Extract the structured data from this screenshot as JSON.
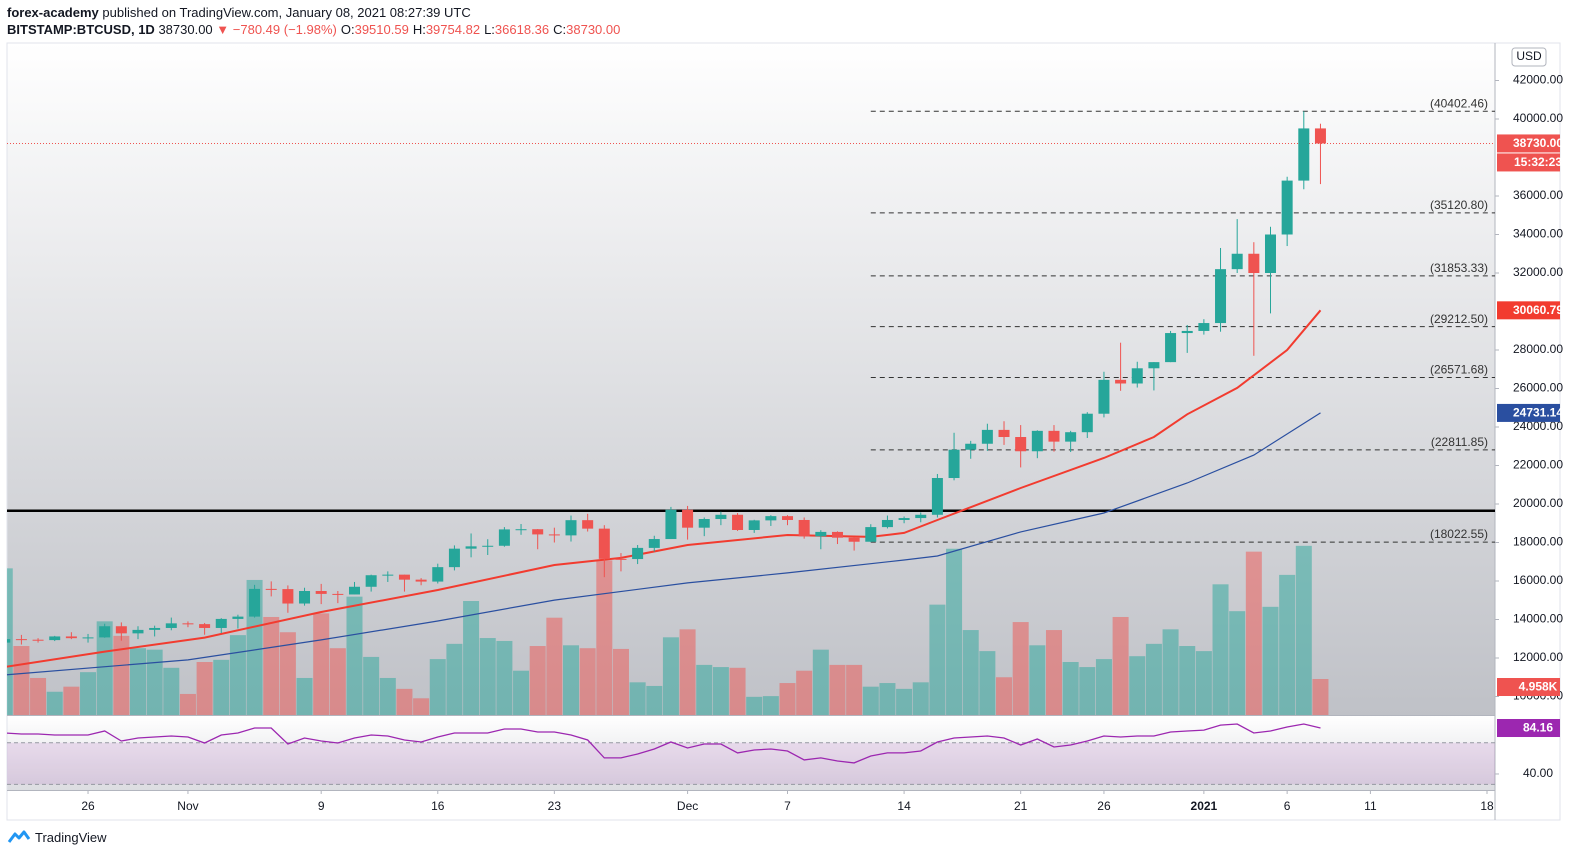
{
  "header": {
    "author": "forex-academy",
    "published": "published on TradingView.com, January 08, 2021 08:27:39 UTC",
    "symbol": "BITSTAMP:BTCUSD, 1D",
    "last": "38730.00",
    "change": "▼ −780.49 (−1.98%)",
    "ohlc": [
      {
        "label": "O:",
        "value": "39510.59"
      },
      {
        "label": "H:",
        "value": "39754.82"
      },
      {
        "label": "L:",
        "value": "36618.36"
      },
      {
        "label": "C:",
        "value": "38730.00"
      }
    ]
  },
  "footer": {
    "brand": "TradingView"
  },
  "chart_data": {
    "type": "candlestick",
    "currency": "USD",
    "up_color": "#26a69a",
    "down_color": "#ef5350",
    "categories": [
      "2020-10-21",
      "2020-10-22",
      "2020-10-23",
      "2020-10-24",
      "2020-10-25",
      "2020-10-26",
      "2020-10-27",
      "2020-10-28",
      "2020-10-29",
      "2020-10-30",
      "2020-10-31",
      "2020-11-01",
      "2020-11-02",
      "2020-11-03",
      "2020-11-04",
      "2020-11-05",
      "2020-11-06",
      "2020-11-07",
      "2020-11-08",
      "2020-11-09",
      "2020-11-10",
      "2020-11-11",
      "2020-11-12",
      "2020-11-13",
      "2020-11-14",
      "2020-11-15",
      "2020-11-16",
      "2020-11-17",
      "2020-11-18",
      "2020-11-19",
      "2020-11-20",
      "2020-11-21",
      "2020-11-22",
      "2020-11-23",
      "2020-11-24",
      "2020-11-25",
      "2020-11-26",
      "2020-11-27",
      "2020-11-28",
      "2020-11-29",
      "2020-11-30",
      "2020-12-01",
      "2020-12-02",
      "2020-12-03",
      "2020-12-04",
      "2020-12-05",
      "2020-12-06",
      "2020-12-07",
      "2020-12-08",
      "2020-12-09",
      "2020-12-10",
      "2020-12-11",
      "2020-12-12",
      "2020-12-13",
      "2020-12-14",
      "2020-12-15",
      "2020-12-16",
      "2020-12-17",
      "2020-12-18",
      "2020-12-19",
      "2020-12-20",
      "2020-12-21",
      "2020-12-22",
      "2020-12-23",
      "2020-12-24",
      "2020-12-25",
      "2020-12-26",
      "2020-12-27",
      "2020-12-28",
      "2020-12-29",
      "2020-12-30",
      "2020-12-31",
      "2021-01-01",
      "2021-01-02",
      "2021-01-03",
      "2021-01-04",
      "2021-01-05",
      "2021-01-06",
      "2021-01-07",
      "2021-01-08"
    ],
    "ohlc": [
      [
        12800,
        13200,
        12700,
        12980
      ],
      [
        12980,
        13200,
        12700,
        12950
      ],
      [
        12950,
        13030,
        12800,
        12930
      ],
      [
        12930,
        13150,
        12880,
        13120
      ],
      [
        13120,
        13340,
        12980,
        13030
      ],
      [
        13030,
        13250,
        12800,
        13070
      ],
      [
        13070,
        13780,
        13050,
        13650
      ],
      [
        13650,
        13850,
        12900,
        13280
      ],
      [
        13280,
        13650,
        12980,
        13460
      ],
      [
        13460,
        13680,
        13120,
        13560
      ],
      [
        13560,
        14100,
        13440,
        13800
      ],
      [
        13800,
        13900,
        13600,
        13760
      ],
      [
        13760,
        13820,
        13210,
        13560
      ],
      [
        13560,
        14070,
        13300,
        14030
      ],
      [
        14030,
        14250,
        13530,
        14150
      ],
      [
        14150,
        15800,
        14100,
        15590
      ],
      [
        15590,
        15980,
        15200,
        15580
      ],
      [
        15580,
        15770,
        14350,
        14830
      ],
      [
        14830,
        15650,
        14720,
        15480
      ],
      [
        15480,
        15850,
        14800,
        15330
      ],
      [
        15330,
        15480,
        14850,
        15300
      ],
      [
        15300,
        15950,
        15300,
        15700
      ],
      [
        15700,
        16330,
        15450,
        16300
      ],
      [
        16300,
        16500,
        15950,
        16330
      ],
      [
        16330,
        16330,
        15450,
        16070
      ],
      [
        16070,
        16150,
        15780,
        15970
      ],
      [
        15970,
        16900,
        15870,
        16720
      ],
      [
        16720,
        17850,
        16550,
        17680
      ],
      [
        17680,
        18470,
        17230,
        17800
      ],
      [
        17800,
        18170,
        17350,
        17830
      ],
      [
        17830,
        18800,
        17780,
        18680
      ],
      [
        18680,
        18960,
        18400,
        18690
      ],
      [
        18690,
        18700,
        17650,
        18420
      ],
      [
        18420,
        18770,
        18000,
        18370
      ],
      [
        18370,
        19400,
        18050,
        19160
      ],
      [
        19160,
        19490,
        18570,
        18720
      ],
      [
        18720,
        18900,
        16200,
        17150
      ],
      [
        17150,
        17450,
        16500,
        17140
      ],
      [
        17140,
        17870,
        16880,
        17720
      ],
      [
        17720,
        18350,
        17530,
        18180
      ],
      [
        18180,
        19850,
        18180,
        19700
      ],
      [
        19700,
        19900,
        18150,
        18770
      ],
      [
        18770,
        19300,
        18330,
        19220
      ],
      [
        19220,
        19600,
        18900,
        19440
      ],
      [
        19440,
        19530,
        18600,
        18650
      ],
      [
        18650,
        19180,
        18500,
        19150
      ],
      [
        19150,
        19420,
        18860,
        19370
      ],
      [
        19370,
        19420,
        18900,
        19170
      ],
      [
        19170,
        19300,
        18200,
        18320
      ],
      [
        18320,
        18640,
        17650,
        18550
      ],
      [
        18550,
        18580,
        17920,
        18250
      ],
      [
        18250,
        18280,
        17580,
        18040
      ],
      [
        18040,
        18950,
        18020,
        18800
      ],
      [
        18800,
        19400,
        18730,
        19170
      ],
      [
        19170,
        19350,
        19000,
        19270
      ],
      [
        19270,
        19560,
        19050,
        19440
      ],
      [
        19440,
        21560,
        19300,
        21350
      ],
      [
        21350,
        23700,
        21230,
        22820
      ],
      [
        22820,
        23280,
        22350,
        23130
      ],
      [
        23130,
        24170,
        22760,
        23850
      ],
      [
        23850,
        24300,
        23070,
        23480
      ],
      [
        23480,
        24100,
        21900,
        22740
      ],
      [
        22740,
        23830,
        22380,
        23800
      ],
      [
        23800,
        24100,
        22720,
        23240
      ],
      [
        23240,
        23800,
        22700,
        23730
      ],
      [
        23730,
        24770,
        23430,
        24690
      ],
      [
        24690,
        26870,
        24500,
        26450
      ],
      [
        26450,
        28380,
        25880,
        26260
      ],
      [
        26260,
        27390,
        26050,
        27050
      ],
      [
        27050,
        27370,
        25900,
        27370
      ],
      [
        27370,
        28990,
        27370,
        28880
      ],
      [
        28880,
        29300,
        27850,
        28990
      ],
      [
        28990,
        29600,
        28800,
        29400
      ],
      [
        29400,
        33300,
        28950,
        32200
      ],
      [
        32200,
        34800,
        32000,
        33000
      ],
      [
        33000,
        33600,
        27700,
        32000
      ],
      [
        32000,
        34400,
        29900,
        34000
      ],
      [
        34000,
        37000,
        33400,
        36800
      ],
      [
        36800,
        40402.46,
        36350,
        39510.59
      ],
      [
        39510.59,
        39754.82,
        36618.36,
        38730
      ]
    ],
    "volume": [
      20200,
      9500,
      5100,
      3200,
      3900,
      5900,
      12900,
      10900,
      9200,
      9000,
      6500,
      2900,
      7300,
      7600,
      11000,
      18600,
      13500,
      11400,
      5100,
      14000,
      9200,
      16300,
      8000,
      5100,
      3600,
      2300,
      7700,
      9800,
      15700,
      10600,
      10200,
      6100,
      9500,
      13400,
      9600,
      9200,
      21300,
      9100,
      4500,
      4000,
      10700,
      11800,
      6900,
      6600,
      6500,
      2500,
      2600,
      4400,
      6100,
      9000,
      6900,
      6900,
      3900,
      4400,
      3600,
      4500,
      15200,
      22900,
      11700,
      8800,
      5200,
      12800,
      9600,
      11700,
      7300,
      6600,
      7700,
      13500,
      8100,
      9800,
      11800,
      9500,
      8800,
      18000,
      14300,
      22500,
      14900,
      19300,
      23300,
      4958
    ],
    "volume_last_label": "4.958K",
    "xlim": [
      "2020-10-20",
      "2021-01-18"
    ],
    "xticks": [
      {
        "value": "2020-10-26",
        "label": "26"
      },
      {
        "value": "2020-11-01",
        "label": "Nov"
      },
      {
        "value": "2020-11-09",
        "label": "9"
      },
      {
        "value": "2020-11-16",
        "label": "16"
      },
      {
        "value": "2020-11-23",
        "label": "23"
      },
      {
        "value": "2020-12-01",
        "label": "Dec"
      },
      {
        "value": "2020-12-07",
        "label": "7"
      },
      {
        "value": "2020-12-14",
        "label": "14"
      },
      {
        "value": "2020-12-21",
        "label": "21"
      },
      {
        "value": "2020-12-26",
        "label": "26"
      },
      {
        "value": "2021-01-01",
        "label": "2021"
      },
      {
        "value": "2021-01-06",
        "label": "6"
      },
      {
        "value": "2021-01-11",
        "label": "11"
      },
      {
        "value": "2021-01-18",
        "label": "18"
      }
    ],
    "ylim": [
      9039,
      43844
    ],
    "yticks": [
      {
        "value": 10000,
        "label": "10000.00"
      },
      {
        "value": 12000,
        "label": "12000.00"
      },
      {
        "value": 14000,
        "label": "14000.00"
      },
      {
        "value": 16000,
        "label": "16000.00"
      },
      {
        "value": 18000,
        "label": "18000.00"
      },
      {
        "value": 20000,
        "label": "20000.00"
      },
      {
        "value": 22000,
        "label": "22000.00"
      },
      {
        "value": 24000,
        "label": "24000.00"
      },
      {
        "value": 26000,
        "label": "26000.00"
      },
      {
        "value": 28000,
        "label": "28000.00"
      },
      {
        "value": 32000,
        "label": "32000.00"
      },
      {
        "value": 34000,
        "label": "34000.00"
      },
      {
        "value": 36000,
        "label": "36000.00"
      },
      {
        "value": 40000,
        "label": "40000.00"
      },
      {
        "value": 42000,
        "label": "42000.00"
      }
    ],
    "grid": false,
    "last_price": {
      "value": 38730,
      "label": "38730.00",
      "countdown": "15:32:23",
      "color": "#ef5350"
    },
    "lines": [
      {
        "color": "#f23b2f",
        "x": [
          "2020-10-21",
          "2020-10-27",
          "2020-11-02",
          "2020-11-09",
          "2020-11-16",
          "2020-11-23",
          "2020-11-27",
          "2020-12-01",
          "2020-12-07",
          "2020-12-12",
          "2020-12-14",
          "2020-12-16",
          "2020-12-21",
          "2020-12-26",
          "2020-12-29",
          "2020-12-31",
          "2021-01-03",
          "2021-01-06",
          "2021-01-08"
        ],
        "values": [
          11530,
          12330,
          13060,
          14390,
          15530,
          16830,
          17200,
          17870,
          18390,
          18290,
          18500,
          19170,
          20830,
          22390,
          23480,
          24660,
          26030,
          28000,
          30060.79
        ],
        "last_label": "30060.79"
      },
      {
        "color": "#2a4fa0",
        "x": [
          "2020-10-21",
          "2020-11-01",
          "2020-11-09",
          "2020-11-16",
          "2020-11-23",
          "2020-12-01",
          "2020-12-07",
          "2020-12-14",
          "2020-12-16",
          "2020-12-21",
          "2020-12-26",
          "2020-12-31",
          "2021-01-04",
          "2021-01-08"
        ],
        "values": [
          11120,
          11900,
          12940,
          13920,
          15010,
          15900,
          16420,
          17090,
          17300,
          18550,
          19530,
          21090,
          22540,
          24731.14
        ],
        "last_label": "24731.14"
      }
    ],
    "fib_levels": [
      {
        "value": 40402.46,
        "label": "(40402.46)"
      },
      {
        "value": 35120.8,
        "label": "(35120.80)"
      },
      {
        "value": 31853.33,
        "label": "(31853.33)"
      },
      {
        "value": 29212.5,
        "label": "(29212.50)"
      },
      {
        "value": 26571.68,
        "label": "(26571.68)"
      },
      {
        "value": 22811.85,
        "label": "(22811.85)"
      },
      {
        "value": 18022.55,
        "label": "(18022.55)"
      }
    ],
    "fib_start": "2020-12-12",
    "support_level": 19650,
    "rsi": {
      "color": "#9c27b0",
      "ylim": [
        24.6,
        95.7
      ],
      "yticks": [
        {
          "value": 40,
          "label": "40.00"
        }
      ],
      "band": [
        30,
        70
      ],
      "last_label": "84.16",
      "values": [
        79.4,
        78.4,
        78.4,
        77.4,
        77.4,
        77.4,
        81.3,
        71.7,
        74.6,
        75.5,
        76.5,
        75.5,
        69.8,
        77.4,
        79.4,
        84.2,
        84.2,
        68.8,
        74.6,
        71.7,
        69.8,
        74.6,
        77.4,
        76.5,
        72.6,
        70.7,
        75.5,
        79.4,
        79.4,
        79.4,
        83.2,
        83.2,
        80.3,
        80.3,
        77.4,
        72.6,
        55.4,
        55.4,
        59.2,
        64.0,
        70.7,
        65.0,
        68.8,
        68.8,
        60.2,
        63.0,
        64.0,
        62.1,
        53.5,
        55.4,
        52.5,
        50.6,
        57.3,
        60.2,
        60.2,
        62.1,
        70.7,
        74.6,
        75.5,
        76.5,
        74.6,
        67.8,
        73.6,
        65.9,
        67.8,
        71.7,
        76.5,
        75.5,
        76.5,
        76.5,
        80.3,
        81.3,
        82.2,
        87.0,
        88.0,
        79.4,
        81.3,
        85.1,
        88.0,
        84.16
      ]
    }
  }
}
